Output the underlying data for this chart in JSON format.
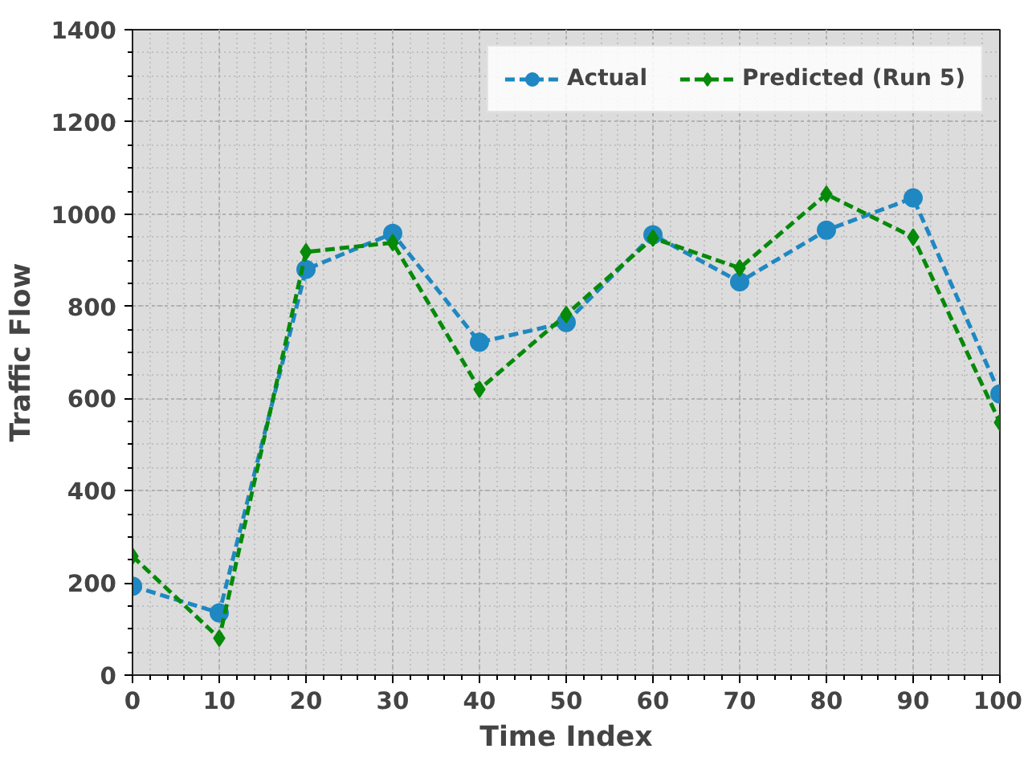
{
  "chart_data": {
    "type": "line",
    "xlabel": "Time Index",
    "ylabel": "Traffic Flow",
    "x": [
      0,
      10,
      20,
      30,
      40,
      50,
      60,
      70,
      80,
      90,
      100
    ],
    "series": [
      {
        "name": "Actual",
        "color": "#1f88c2",
        "marker": "circle",
        "values": [
          193,
          135,
          880,
          958,
          722,
          765,
          955,
          853,
          965,
          1035,
          610
        ]
      },
      {
        "name": "Predicted (Run 5)",
        "color": "#078a0a",
        "marker": "diamond",
        "values": [
          258,
          80,
          918,
          938,
          620,
          782,
          948,
          883,
          1043,
          950,
          548
        ]
      }
    ],
    "line_style": "dashed",
    "xlim": [
      0,
      100
    ],
    "xticks": [
      0,
      10,
      20,
      30,
      40,
      50,
      60,
      70,
      80,
      90,
      100
    ],
    "ylim": [
      0,
      1400
    ],
    "yticks": [
      0,
      200,
      400,
      600,
      800,
      1000,
      1200,
      1400
    ],
    "grid": true,
    "legend": "top right"
  }
}
